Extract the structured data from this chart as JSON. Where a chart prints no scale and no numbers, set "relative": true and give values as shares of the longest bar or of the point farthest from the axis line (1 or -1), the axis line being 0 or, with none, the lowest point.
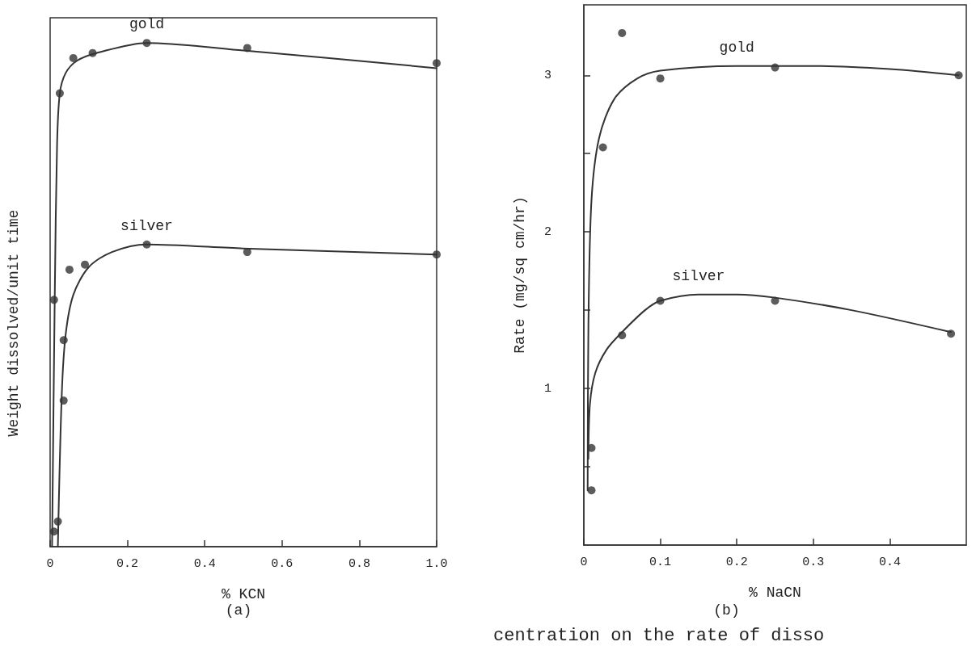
{
  "chart_data": [
    {
      "type": "scatter",
      "title": "(a)",
      "xlabel": "% KCN",
      "ylabel": "Weight dissolved/unit time",
      "relative": true,
      "xlim": [
        0,
        1
      ],
      "xticks": [
        0,
        0.2,
        0.4,
        0.6,
        0.8,
        {
          "value": 1,
          "label": "1.0"
        }
      ],
      "grid": false,
      "legend": false,
      "marker": "circle",
      "series": [
        {
          "color": "#333333",
          "x": [
            0.01,
            0.01,
            0.025,
            0.06,
            0.11,
            0.25,
            0.51,
            1.0
          ],
          "values": [
            0.03,
            0.49,
            0.9,
            0.97,
            0.98,
            1.0,
            0.99,
            0.96
          ]
        },
        {
          "type": "line",
          "name": "gold",
          "marker": "none",
          "color": "#333333",
          "line_style": "solid",
          "x": [
            0.005,
            0.012,
            0.018,
            0.025,
            0.04,
            0.07,
            0.12,
            0.25,
            0.5,
            1.0
          ],
          "values": [
            0,
            0.5,
            0.8,
            0.9,
            0.94,
            0.965,
            0.98,
            1.0,
            0.985,
            0.95
          ]
        },
        {
          "color": "#333333",
          "x": [
            0.02,
            0.035,
            0.035,
            0.05,
            0.09,
            0.25,
            0.51,
            1.0
          ],
          "values": [
            0.05,
            0.29,
            0.41,
            0.55,
            0.56,
            0.6,
            0.585,
            0.58
          ]
        },
        {
          "type": "line",
          "name": "silver",
          "marker": "none",
          "color": "#333333",
          "line_style": "solid",
          "x": [
            0.02,
            0.03,
            0.04,
            0.06,
            0.1,
            0.16,
            0.25,
            0.5,
            1.0
          ],
          "values": [
            0,
            0.3,
            0.42,
            0.5,
            0.555,
            0.585,
            0.6,
            0.592,
            0.58
          ]
        }
      ]
    },
    {
      "type": "scatter",
      "title": "(b)",
      "xlabel": "% NaCN",
      "ylabel": "Rate (mg/sq cm/hr)",
      "xlim": [
        0,
        0.5
      ],
      "xticks": [
        0,
        0.1,
        0.2,
        0.3,
        0.4
      ],
      "ylim": [
        0,
        3.45
      ],
      "yticks": [
        {
          "value": 0.5,
          "label": null
        },
        1,
        {
          "value": 1.5,
          "label": null
        },
        2,
        {
          "value": 2.5,
          "label": null
        },
        3
      ],
      "grid": false,
      "legend": false,
      "marker": "circle",
      "annotations": [
        "centration on the rate of disso"
      ],
      "series": [
        {
          "color": "#333333",
          "x": [
            0.01,
            0.025,
            0.05,
            0.1,
            0.25,
            0.49
          ],
          "values": [
            0.35,
            2.54,
            3.27,
            2.98,
            3.05,
            3.0
          ]
        },
        {
          "type": "line",
          "name": "gold",
          "marker": "none",
          "color": "#333333",
          "line_style": "solid",
          "x": [
            0.005,
            0.006,
            0.01,
            0.02,
            0.04,
            0.07,
            0.1,
            0.2,
            0.3,
            0.4,
            0.49
          ],
          "values": [
            0.35,
            1.4,
            2.2,
            2.6,
            2.85,
            2.98,
            3.03,
            3.06,
            3.06,
            3.04,
            3.0
          ]
        },
        {
          "color": "#333333",
          "x": [
            0.01,
            0.05,
            0.1,
            0.25,
            0.48
          ],
          "values": [
            0.62,
            1.34,
            1.56,
            1.56,
            1.35
          ]
        },
        {
          "type": "line",
          "name": "silver",
          "marker": "none",
          "color": "#333333",
          "line_style": "solid",
          "x": [
            0.006,
            0.008,
            0.015,
            0.03,
            0.05,
            0.08,
            0.1,
            0.15,
            0.2,
            0.25,
            0.35,
            0.48
          ],
          "values": [
            0.55,
            0.9,
            1.1,
            1.25,
            1.36,
            1.5,
            1.56,
            1.6,
            1.6,
            1.58,
            1.5,
            1.36
          ]
        }
      ]
    }
  ]
}
